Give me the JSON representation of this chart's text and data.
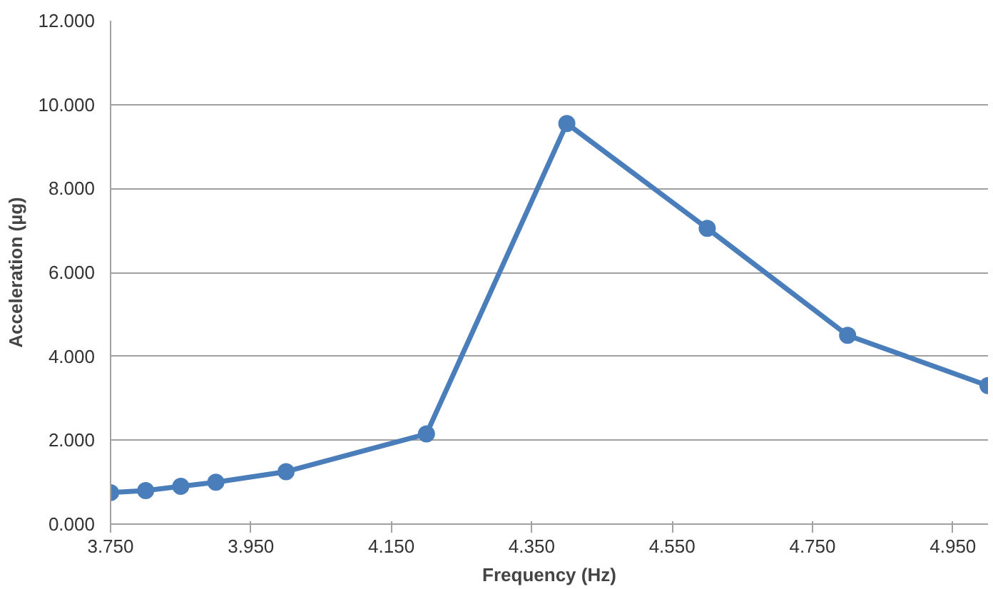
{
  "chart_data": {
    "type": "line",
    "xlabel": "Frequency (Hz)",
    "ylabel": "Acceleration (µg)",
    "x": [
      3.75,
      3.8,
      3.85,
      3.9,
      4.0,
      4.2,
      4.4,
      4.6,
      4.8,
      5.0
    ],
    "series": [
      {
        "color": "#4a7ebb",
        "values": [
          0.75,
          0.8,
          0.9,
          1.0,
          1.25,
          2.15,
          9.55,
          7.05,
          4.5,
          3.3
        ]
      }
    ],
    "xlim": [
      3.75,
      5.0
    ],
    "xticks": [
      {
        "value": 3.75,
        "label": "3.750"
      },
      {
        "value": 3.95,
        "label": "3.950"
      },
      {
        "value": 4.15,
        "label": "4.150"
      },
      {
        "value": 4.35,
        "label": "4.350"
      },
      {
        "value": 4.55,
        "label": "4.550"
      },
      {
        "value": 4.75,
        "label": "4.750"
      },
      {
        "value": 4.95,
        "label": "4.950"
      }
    ],
    "ylim": [
      0,
      12
    ],
    "yticks": [
      {
        "value": 0,
        "label": "0.000"
      },
      {
        "value": 2,
        "label": "2.000"
      },
      {
        "value": 4,
        "label": "4.000"
      },
      {
        "value": 6,
        "label": "6.000"
      },
      {
        "value": 8,
        "label": "8.000"
      },
      {
        "value": 10,
        "label": "10.000"
      },
      {
        "value": 12,
        "label": "12.000"
      }
    ],
    "grid": "y",
    "marker": "circle",
    "line_style": "solid"
  }
}
